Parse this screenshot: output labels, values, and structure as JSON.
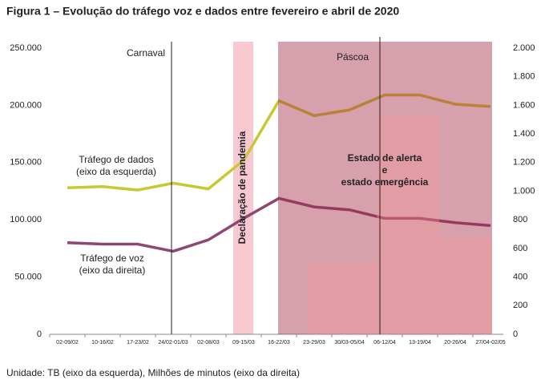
{
  "chart_data": {
    "type": "line",
    "title": "Figura 1 – Evolução do tráfego voz e dados entre fevereiro e abril de 2020",
    "note": "Unidade: TB (eixo da esquerda), Milhões de minutos (eixo da direita)",
    "categories": [
      "02-09/02",
      "10-16/02",
      "17-23/02",
      "24/02-01/03",
      "02-08/03",
      "09-15/03",
      "16-22/03",
      "23-29/03",
      "30/03-05/04",
      "06-12/04",
      "13-19/04",
      "20-26/04",
      "27/04-02/05"
    ],
    "series": [
      {
        "name": "Tráfego de dados",
        "axis_note": "(eixo da esquerda)",
        "color": "#c8c832",
        "axis": "y",
        "values": [
          128000,
          129000,
          126000,
          132000,
          127000,
          152000,
          204000,
          191000,
          196000,
          209000,
          209000,
          201000,
          199000
        ]
      },
      {
        "name": "Tráfego de voz",
        "axis_note": "(eixo da direita)",
        "color": "#8e4672",
        "axis": "y2",
        "values": [
          640,
          630,
          630,
          580,
          660,
          810,
          950,
          890,
          870,
          810,
          810,
          780,
          760
        ]
      }
    ],
    "ylim": [
      0,
      250000
    ],
    "yticks": [
      0,
      {
        "value": 50000,
        "label": "50.000"
      },
      {
        "value": 100000,
        "label": "100.000"
      },
      {
        "value": 150000,
        "label": "150.000"
      },
      {
        "value": 200000,
        "label": "200.000"
      },
      {
        "value": 250000,
        "label": "250.000"
      }
    ],
    "y2lim": [
      0,
      2000
    ],
    "y2ticks": [
      0,
      200,
      400,
      600,
      800,
      {
        "value": 1000,
        "label": "1.000"
      },
      {
        "value": 1200,
        "label": "1.200"
      },
      {
        "value": 1400,
        "label": "1.400"
      },
      {
        "value": 1600,
        "label": "1.600"
      },
      {
        "value": 1800,
        "label": "1.800"
      },
      {
        "value": 2000,
        "label": "2.000"
      }
    ],
    "annotations": {
      "carnival": "Carnaval",
      "easter": "Páscoa",
      "pandemic": "Declaração de pandemia",
      "state": [
        "Estado de alerta",
        "e",
        "estado emergência"
      ]
    }
  }
}
